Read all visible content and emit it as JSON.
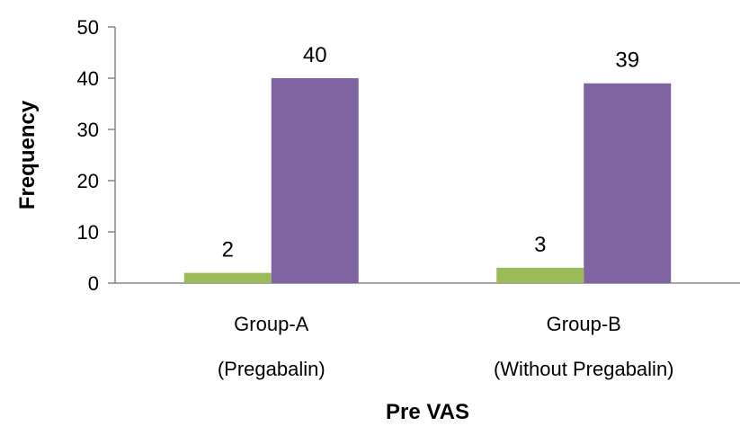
{
  "chart_data": {
    "type": "bar",
    "categories": [
      [
        "Group-A",
        "(Pregabalin)"
      ],
      [
        "Group-B",
        "(Without Pregabalin)"
      ]
    ],
    "series": [
      {
        "values": [
          2,
          3
        ],
        "color": "#9bbb59"
      },
      {
        "values": [
          40,
          39
        ],
        "color": "#8064a2"
      }
    ],
    "xlabel": "Pre VAS",
    "ylabel": "Frequency",
    "ylim": [
      0,
      50
    ],
    "yticks": [
      0,
      10,
      20,
      30,
      40,
      50
    ],
    "grid": false,
    "legend": "none"
  }
}
